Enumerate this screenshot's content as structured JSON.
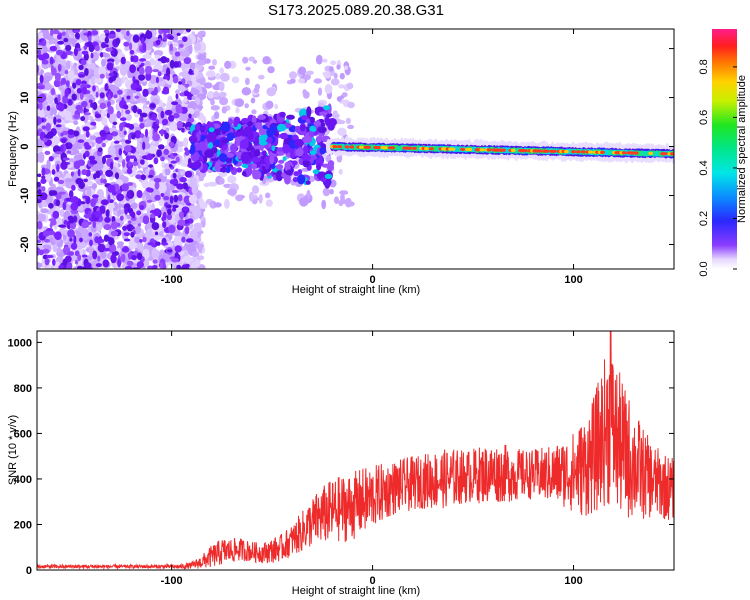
{
  "title": "S173.2025.089.20.38.G31",
  "chart_data": [
    {
      "type": "heatmap",
      "xlabel": "Height of straight line (km)",
      "ylabel": "Frequency (Hz)",
      "xlim": [
        -167,
        150
      ],
      "ylim": [
        -25,
        24
      ],
      "xticks": [
        "-100",
        "0",
        "100"
      ],
      "yticks": [
        "20",
        "10",
        "0",
        "-10",
        "-20"
      ],
      "colorbar": {
        "label": "Normalized spectral amplitude",
        "range": [
          0,
          0.95
        ],
        "ticks": [
          "0.0",
          "0.2",
          "0.4",
          "0.6",
          "0.8"
        ],
        "colormap": "rainbow (white, violet, blue, cyan, green, yellow, orange, red, magenta)"
      },
      "features": {
        "noise_region_x": [
          -167,
          -90
        ],
        "scatter_region_x": [
          -90,
          -20
        ],
        "scatter_freq_range_hz": [
          -7,
          10
        ],
        "signal_line_x": [
          -20,
          150
        ],
        "signal_freq_start_hz": 0,
        "signal_freq_end_hz": -1.5,
        "signal_peak_amplitude": 0.9
      },
      "grid": false,
      "legend": "none"
    },
    {
      "type": "line",
      "xlabel": "Height of straight line (km)",
      "ylabel": "SNR (10 * v/v)",
      "xlim": [
        -167,
        150
      ],
      "ylim": [
        0,
        1050
      ],
      "xticks": [
        "-100",
        "0",
        "100"
      ],
      "yticks": [
        "0",
        "200",
        "400",
        "600",
        "800",
        "1000"
      ],
      "series_color": "#ee2a2a",
      "x": [
        -167,
        -150,
        -130,
        -110,
        -95,
        -90,
        -85,
        -80,
        -75,
        -70,
        -65,
        -60,
        -55,
        -50,
        -45,
        -40,
        -35,
        -30,
        -25,
        -20,
        -15,
        -10,
        -5,
        0,
        5,
        10,
        15,
        20,
        25,
        30,
        35,
        40,
        45,
        50,
        55,
        60,
        65,
        70,
        75,
        80,
        85,
        90,
        95,
        100,
        105,
        110,
        115,
        118,
        120,
        125,
        130,
        135,
        140,
        145,
        150
      ],
      "y_base": [
        15,
        15,
        15,
        15,
        15,
        20,
        35,
        60,
        80,
        85,
        90,
        80,
        75,
        85,
        100,
        130,
        170,
        210,
        240,
        260,
        270,
        280,
        300,
        320,
        340,
        360,
        370,
        380,
        390,
        395,
        400,
        405,
        410,
        415,
        420,
        425,
        425,
        420,
        420,
        420,
        420,
        420,
        425,
        430,
        450,
        500,
        600,
        650,
        600,
        520,
        470,
        420,
        390,
        370,
        350
      ],
      "y_amp": [
        8,
        8,
        8,
        8,
        10,
        15,
        30,
        50,
        60,
        55,
        50,
        45,
        45,
        55,
        60,
        70,
        90,
        110,
        130,
        140,
        150,
        150,
        150,
        140,
        130,
        120,
        120,
        120,
        120,
        130,
        130,
        130,
        120,
        120,
        130,
        130,
        130,
        120,
        110,
        110,
        120,
        130,
        150,
        180,
        220,
        260,
        320,
        380,
        340,
        300,
        250,
        200,
        160,
        150,
        140
      ],
      "y_peak": 1050,
      "grid": false,
      "legend": "none"
    }
  ]
}
